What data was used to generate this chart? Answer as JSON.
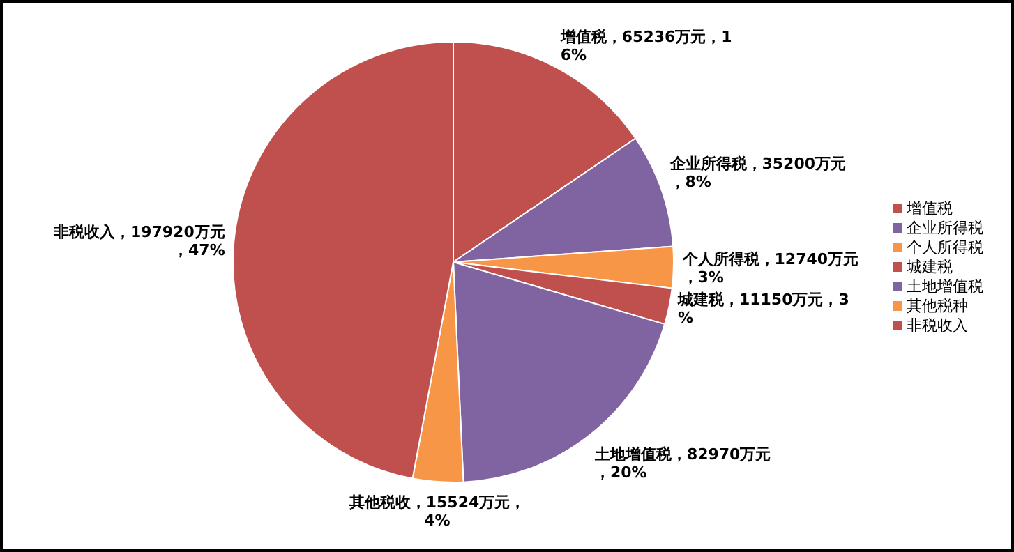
{
  "chart_data": {
    "type": "pie",
    "categories": [
      "增值税",
      "企业所得税",
      "个人所得税",
      "城建税",
      "土地增值税",
      "其他税种",
      "非税收入"
    ],
    "values": [
      65236,
      35200,
      12740,
      11150,
      82970,
      15524,
      197920
    ],
    "colors": [
      "#c0504d",
      "#8064a2",
      "#f79646",
      "#c0504d",
      "#8064a2",
      "#f79646",
      "#c0504d"
    ],
    "value_labels": [
      "增值税，65236万元，16%",
      "企业所得税，35200万元，8%",
      "个人所得税，12740万元，3%",
      "城建税，11150万元，3%",
      "土地增值税，82970万元，20%",
      "其他税收，15524万元，4%",
      "非税收入，197920万元，47%"
    ],
    "legend": "right"
  }
}
